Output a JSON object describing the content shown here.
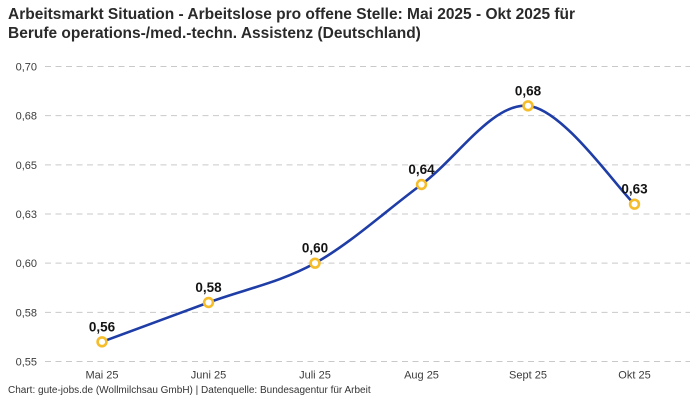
{
  "header": {
    "title_line1": "Arbeitsmarkt Situation - Arbeitslose pro offene Stelle: Mai 2025 - Okt 2025 für",
    "title_line2": "Berufe operations-/med.-techn. Assistenz (Deutschland)"
  },
  "footer": {
    "credit": "Chart: gute-jobs.de (Wollmilchsau GmbH) | Datenquelle: Bundesagentur für Arbeit"
  },
  "chart_data": {
    "type": "line",
    "title": "Arbeitsmarkt Situation - Arbeitslose pro offene Stelle: Mai 2025 - Okt 2025 für Berufe operations-/med.-techn. Assistenz (Deutschland)",
    "categories": [
      "Mai 25",
      "Juni 25",
      "Juli 25",
      "Aug 25",
      "Sept 25",
      "Okt 25"
    ],
    "values": [
      0.56,
      0.58,
      0.6,
      0.64,
      0.68,
      0.63
    ],
    "point_labels": [
      "0,56",
      "0,58",
      "0,60",
      "0,64",
      "0,68",
      "0,63"
    ],
    "xlabel": "",
    "ylabel": "",
    "ylim": [
      0.55,
      0.7
    ],
    "yticks": {
      "values": [
        0.55,
        0.575,
        0.6,
        0.625,
        0.65,
        0.675,
        0.7
      ],
      "labels": [
        "0,55",
        "0,58",
        "0,60",
        "0,63",
        "0,65",
        "0,68",
        "0,70"
      ]
    },
    "grid": "horizontal-dashed",
    "legend": "none",
    "line_style": "smooth-spline",
    "colors": {
      "line": "#1f3da6",
      "marker_stroke": "#f6bd2b",
      "marker_fill": "#ffffff",
      "grid": "#c9c9c9",
      "title_text": "#2a2a2a",
      "axis_text": "#3c3c3c",
      "point_label_text": "#141414",
      "background": "#ffffff"
    }
  }
}
